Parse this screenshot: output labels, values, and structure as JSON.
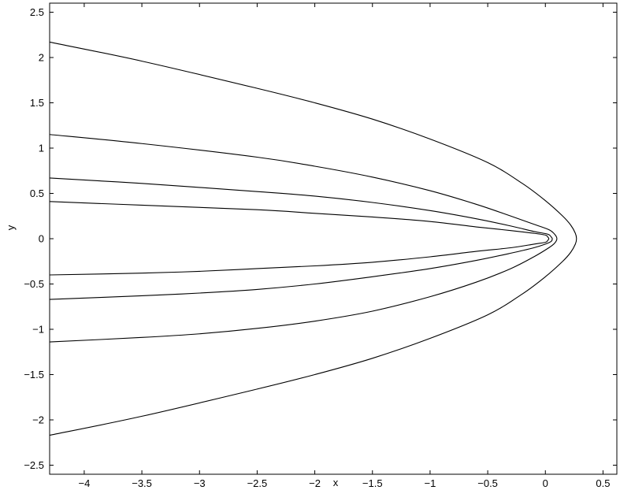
{
  "chart_data": {
    "type": "line",
    "title": "",
    "xlabel": "x",
    "ylabel": "y",
    "xlim": [
      -4.3,
      0.62
    ],
    "ylim": [
      -2.6,
      2.6
    ],
    "grid": false,
    "legend": "none",
    "x_ticks": [
      -4,
      -3.5,
      -3,
      -2.5,
      -2,
      -1.5,
      -1,
      -0.5,
      0,
      0.5
    ],
    "x_tick_labels": [
      "−4",
      "−3.5",
      "−3",
      "−2.5",
      "−2",
      "−1.5",
      "−1",
      "−0.5",
      "0",
      "0.5"
    ],
    "y_ticks": [
      2.5,
      2,
      1.5,
      1,
      0.5,
      0,
      -0.5,
      -1,
      -1.5,
      -2,
      -2.5
    ],
    "y_tick_labels": [
      "2.5",
      "2",
      "1.5",
      "1",
      "0.5",
      "0",
      "−0.5",
      "−1",
      "−1.5",
      "−2",
      "−2.5"
    ],
    "line_color": "#000000",
    "series": [
      {
        "points": [
          [
            -4.3,
            2.17
          ],
          [
            -3.5,
            1.96
          ],
          [
            -2.5,
            1.66
          ],
          [
            -2.0,
            1.5
          ],
          [
            -1.5,
            1.32
          ],
          [
            -1.0,
            1.1
          ],
          [
            -0.5,
            0.84
          ],
          [
            -0.2,
            0.61
          ],
          [
            0.0,
            0.42
          ],
          [
            0.15,
            0.25
          ],
          [
            0.22,
            0.15
          ],
          [
            0.26,
            0.06
          ],
          [
            0.27,
            0.0
          ],
          [
            0.26,
            -0.06
          ],
          [
            0.22,
            -0.15
          ],
          [
            0.15,
            -0.25
          ],
          [
            0.0,
            -0.42
          ],
          [
            -0.2,
            -0.61
          ],
          [
            -0.5,
            -0.84
          ],
          [
            -1.0,
            -1.1
          ],
          [
            -1.5,
            -1.32
          ],
          [
            -2.0,
            -1.5
          ],
          [
            -2.5,
            -1.66
          ],
          [
            -3.5,
            -1.96
          ],
          [
            -4.3,
            -2.17
          ]
        ]
      },
      {
        "points": [
          [
            -4.3,
            1.15
          ],
          [
            -3.5,
            1.05
          ],
          [
            -2.5,
            0.9
          ],
          [
            -2.0,
            0.8
          ],
          [
            -1.5,
            0.68
          ],
          [
            -1.0,
            0.53
          ],
          [
            -0.6,
            0.38
          ],
          [
            -0.3,
            0.25
          ],
          [
            -0.1,
            0.16
          ],
          [
            0.03,
            0.1
          ],
          [
            0.08,
            0.05
          ],
          [
            0.1,
            0.0
          ],
          [
            0.08,
            -0.05
          ],
          [
            0.03,
            -0.1
          ],
          [
            -0.1,
            -0.2
          ],
          [
            -0.3,
            -0.33
          ],
          [
            -0.6,
            -0.48
          ],
          [
            -1.0,
            -0.64
          ],
          [
            -1.5,
            -0.8
          ],
          [
            -2.0,
            -0.91
          ],
          [
            -2.5,
            -0.99
          ],
          [
            -3.0,
            -1.05
          ],
          [
            -3.5,
            -1.09
          ],
          [
            -4.3,
            -1.14
          ]
        ]
      },
      {
        "points": [
          [
            -4.3,
            0.67
          ],
          [
            -3.5,
            0.61
          ],
          [
            -2.5,
            0.52
          ],
          [
            -2.0,
            0.47
          ],
          [
            -1.5,
            0.4
          ],
          [
            -1.0,
            0.31
          ],
          [
            -0.6,
            0.22
          ],
          [
            -0.3,
            0.14
          ],
          [
            -0.1,
            0.08
          ],
          [
            0.02,
            0.05
          ],
          [
            0.05,
            0.02
          ],
          [
            0.06,
            0.0
          ],
          [
            0.05,
            -0.03
          ],
          [
            0.0,
            -0.06
          ],
          [
            -0.1,
            -0.1
          ],
          [
            -0.3,
            -0.16
          ],
          [
            -0.6,
            -0.24
          ],
          [
            -1.0,
            -0.33
          ],
          [
            -1.5,
            -0.42
          ],
          [
            -2.0,
            -0.5
          ],
          [
            -2.5,
            -0.56
          ],
          [
            -3.0,
            -0.6
          ],
          [
            -3.5,
            -0.63
          ],
          [
            -4.3,
            -0.67
          ]
        ]
      },
      {
        "points": [
          [
            -4.3,
            0.41
          ],
          [
            -3.5,
            0.37
          ],
          [
            -2.5,
            0.32
          ],
          [
            -2.0,
            0.28
          ],
          [
            -1.5,
            0.24
          ],
          [
            -1.0,
            0.19
          ],
          [
            -0.6,
            0.13
          ],
          [
            -0.3,
            0.09
          ],
          [
            -0.1,
            0.06
          ],
          [
            0.0,
            0.04
          ],
          [
            0.02,
            0.02
          ],
          [
            0.03,
            0.0
          ],
          [
            0.02,
            -0.02
          ],
          [
            0.0,
            -0.04
          ],
          [
            -0.1,
            -0.06
          ],
          [
            -0.3,
            -0.1
          ],
          [
            -0.6,
            -0.14
          ],
          [
            -1.0,
            -0.2
          ],
          [
            -1.5,
            -0.26
          ],
          [
            -2.0,
            -0.3
          ],
          [
            -2.5,
            -0.33
          ],
          [
            -3.0,
            -0.36
          ],
          [
            -3.5,
            -0.38
          ],
          [
            -4.3,
            -0.4
          ]
        ]
      }
    ]
  }
}
